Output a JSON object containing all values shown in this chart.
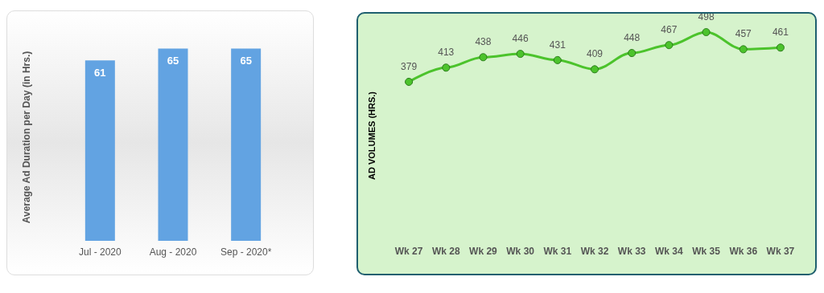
{
  "chart_data": [
    {
      "type": "bar",
      "ylabel": "Average Ad Duration per Day (in Hrs.)",
      "categories": [
        "Jul - 2020",
        "Aug - 2020",
        "Sep - 2020*"
      ],
      "values": [
        61,
        65,
        65
      ],
      "color": "#62a3e2",
      "data_labels": true
    },
    {
      "type": "line",
      "ylabel": "AD VOLUMES (HRS.)",
      "categories": [
        "Wk 27",
        "Wk 28",
        "Wk 29",
        "Wk 30",
        "Wk 31",
        "Wk 32",
        "Wk 33",
        "Wk 34",
        "Wk 35",
        "Wk 36",
        "Wk 37"
      ],
      "values": [
        379,
        413,
        438,
        446,
        431,
        409,
        448,
        467,
        498,
        457,
        461
      ],
      "color": "#4cc32c",
      "data_labels": true,
      "marker": "circle",
      "line_style": "solid"
    }
  ]
}
